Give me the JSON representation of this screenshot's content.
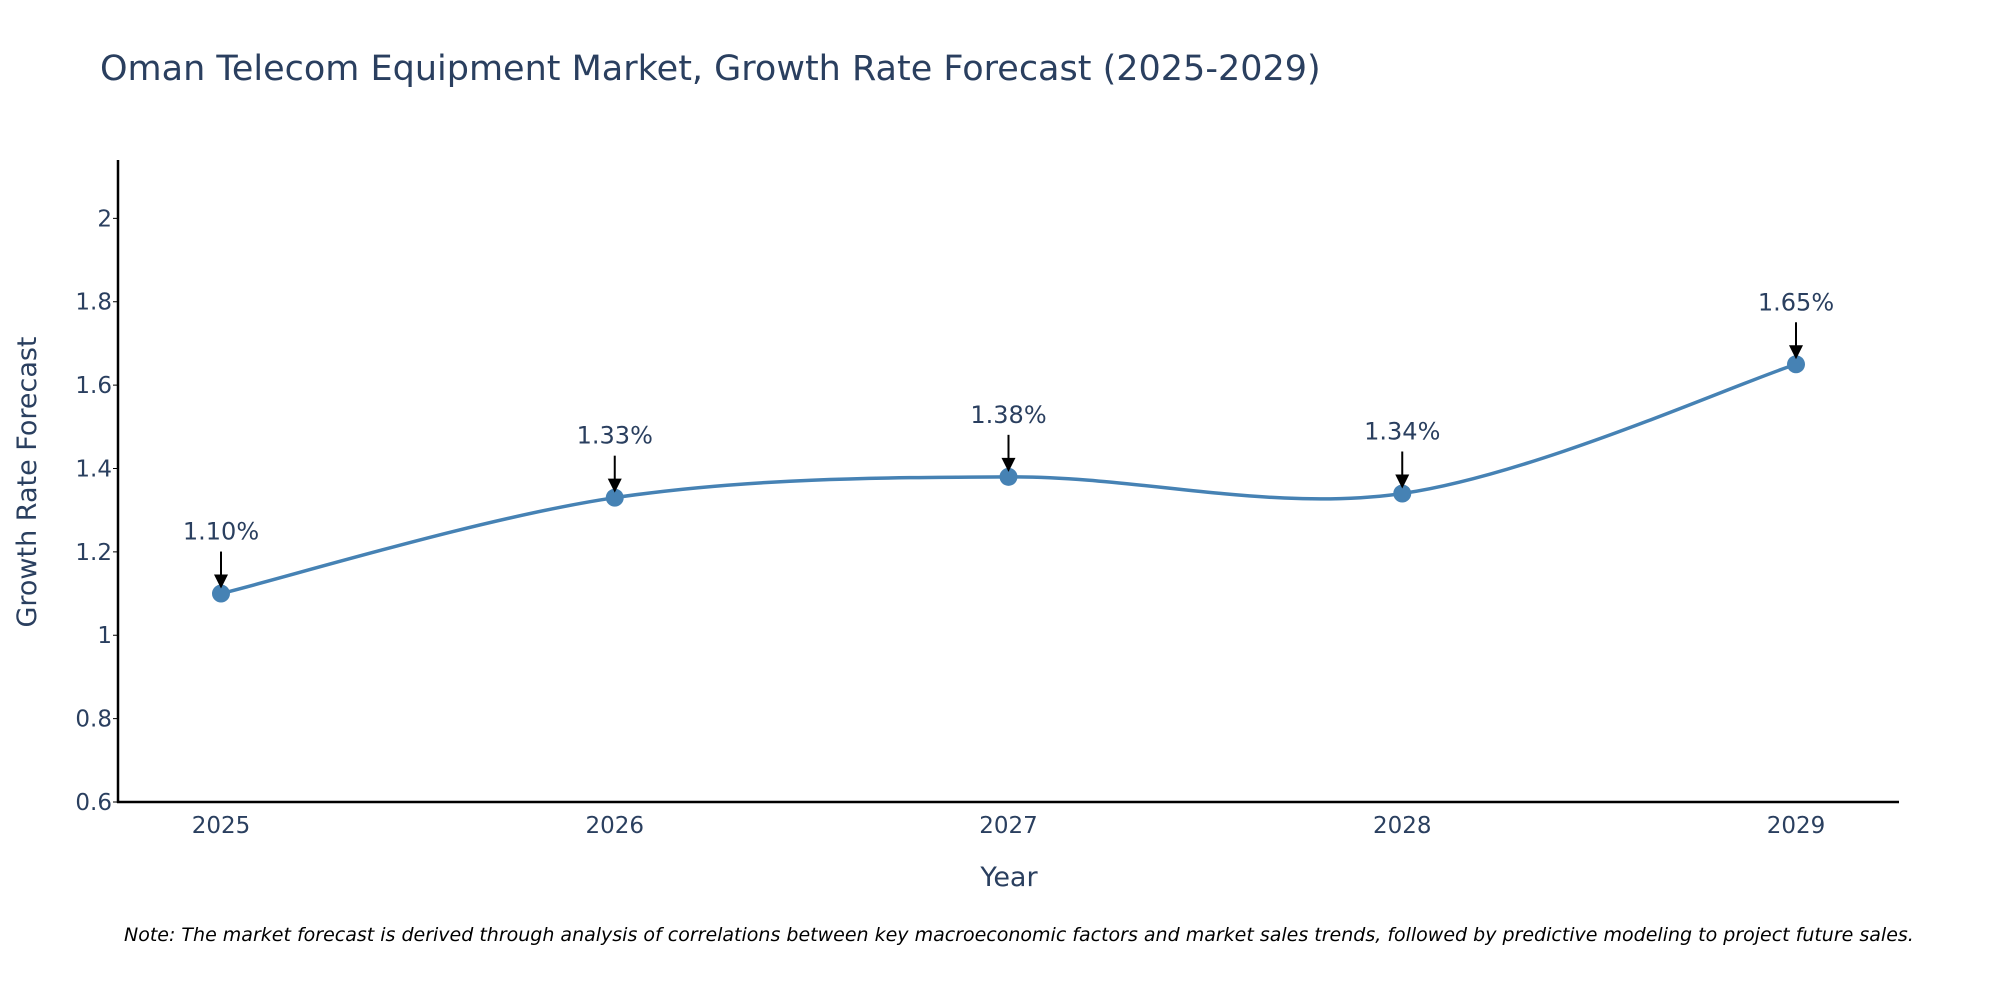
{
  "chart_data": {
    "type": "line",
    "title": "Oman Telecom Equipment Market, Growth Rate Forecast (2025-2029)",
    "xlabel": "Year",
    "ylabel": "Growth Rate Forecast",
    "categories": [
      "2025",
      "2026",
      "2027",
      "2028",
      "2029"
    ],
    "values": [
      1.1,
      1.33,
      1.38,
      1.34,
      1.65
    ],
    "data_labels": [
      "1.10%",
      "1.33%",
      "1.38%",
      "1.34%",
      "1.65%"
    ],
    "ylim": [
      0.6,
      2.14
    ],
    "yticks": [
      0.6,
      0.8,
      1,
      1.2,
      1.4,
      1.6,
      1.8,
      2
    ],
    "ytick_labels": [
      "0.6",
      "0.8",
      "1",
      "1.2",
      "1.4",
      "1.6",
      "1.8",
      "2"
    ],
    "line_shape": "spline",
    "grid": false,
    "legend": "none",
    "note": "Note: The market forecast is derived through analysis of correlations between key macroeconomic factors and market sales trends, followed by predictive modeling to project future sales."
  },
  "colors": {
    "line": "#4682b4",
    "marker": "#4682b4",
    "arrow": "#000000",
    "axis": "#000000",
    "text": "#2a3f5f"
  }
}
